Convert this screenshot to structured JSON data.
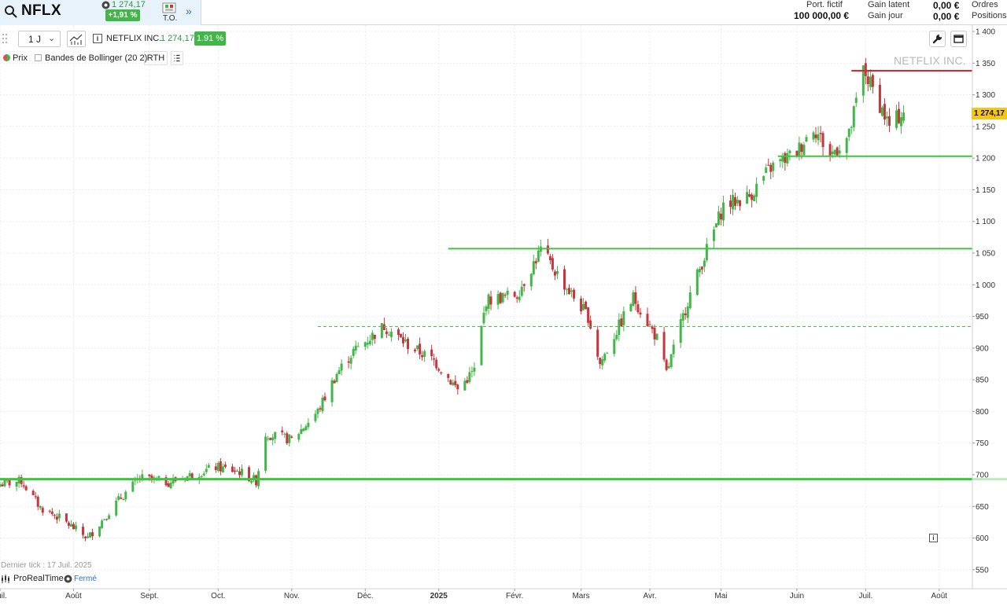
{
  "header": {
    "symbol": "NFLX",
    "mini_price": "1 274,17",
    "change_badge": "+1,91 %",
    "to_label": "T.O.",
    "expand_glyph": "»",
    "portfolio_label": "Port. fictif",
    "portfolio_value": "100 000,00 €",
    "latent_gain_label": "Gain latent",
    "latent_gain_value": "0,00 €",
    "day_gain_label": "Gain jour",
    "day_gain_value": "0,00 €",
    "orders_label": "Ordres",
    "positions_label": "Positions"
  },
  "toolbar": {
    "period": "1 J",
    "instrument_name": "NETFLIX INC.",
    "instrument_price": "1 274,17",
    "instrument_change": "1.91 %",
    "legend_price": "Prix",
    "legend_bollinger": "Bandes de Bollinger (20 2)",
    "rth": "RTH",
    "watermark": "NETFLIX INC."
  },
  "footer": {
    "last_tick": "Dernier tick : 17 Juil. 2025",
    "platform": "ProRealTime",
    "market_status": "Fermé"
  },
  "colors": {
    "up": "#43b649",
    "down": "#c9353d",
    "support_line": "#3cc63c",
    "resistance_line": "#e0242c",
    "last_price_tag": "#f5c518",
    "accent": "#2b70c9"
  },
  "icons": {
    "search": "search-icon",
    "trade_orders": "trade-orders-icon",
    "chart_type": "candlestick-chart-icon",
    "wrench": "wrench-icon",
    "window": "window-icon",
    "info": "info-icon",
    "list": "list-icon"
  },
  "chart_data": {
    "type": "candlestick",
    "instrument": "NETFLIX INC.",
    "last_price": 1274.17,
    "last_price_label": "1 274,17",
    "y_range": [
      520,
      1410
    ],
    "y_ticks": [
      1400,
      1350,
      1300,
      1250,
      1200,
      1150,
      1100,
      1050,
      1000,
      950,
      900,
      850,
      800,
      750,
      700,
      650,
      600,
      550
    ],
    "y_tick_labels": [
      "1 400",
      "1 350",
      "1 300",
      "1 250",
      "1 200",
      "1 150",
      "1 100",
      "1 050",
      "1 000",
      "950",
      "900",
      "850",
      "800",
      "750",
      "700",
      "650",
      "600",
      "550"
    ],
    "x_range": [
      "2024-07-01",
      "2025-08-15"
    ],
    "x_ticks": [
      {
        "label": "Juil.",
        "date": "2024-07-01",
        "bold": false
      },
      {
        "label": "Août",
        "date": "2024-08-01",
        "bold": false
      },
      {
        "label": "Sept.",
        "date": "2024-09-02",
        "bold": false
      },
      {
        "label": "Oct.",
        "date": "2024-10-01",
        "bold": false
      },
      {
        "label": "Nov.",
        "date": "2024-11-01",
        "bold": false
      },
      {
        "label": "Déc.",
        "date": "2024-12-02",
        "bold": false
      },
      {
        "label": "2025",
        "date": "2025-01-02",
        "bold": true
      },
      {
        "label": "Févr.",
        "date": "2025-02-03",
        "bold": false
      },
      {
        "label": "Mars",
        "date": "2025-03-03",
        "bold": false
      },
      {
        "label": "Avr.",
        "date": "2025-04-01",
        "bold": false
      },
      {
        "label": "Mai",
        "date": "2025-05-01",
        "bold": false
      },
      {
        "label": "Juin",
        "date": "2025-06-02",
        "bold": false
      },
      {
        "label": "Juil.",
        "date": "2025-07-01",
        "bold": false
      },
      {
        "label": "Août",
        "date": "2025-08-01",
        "bold": false
      }
    ],
    "price_path": [
      {
        "date": "2024-07-01",
        "close": 685
      },
      {
        "date": "2024-07-10",
        "close": 690
      },
      {
        "date": "2024-07-18",
        "close": 648
      },
      {
        "date": "2024-07-26",
        "close": 632
      },
      {
        "date": "2024-08-07",
        "close": 600
      },
      {
        "date": "2024-08-20",
        "close": 660
      },
      {
        "date": "2024-08-29",
        "close": 695
      },
      {
        "date": "2024-09-10",
        "close": 688
      },
      {
        "date": "2024-09-20",
        "close": 700
      },
      {
        "date": "2024-09-30",
        "close": 712
      },
      {
        "date": "2024-10-10",
        "close": 705
      },
      {
        "date": "2024-10-17",
        "close": 690
      },
      {
        "date": "2024-10-21",
        "close": 765
      },
      {
        "date": "2024-11-01",
        "close": 755
      },
      {
        "date": "2024-11-12",
        "close": 800
      },
      {
        "date": "2024-11-20",
        "close": 860
      },
      {
        "date": "2024-11-27",
        "close": 895
      },
      {
        "date": "2024-12-10",
        "close": 935
      },
      {
        "date": "2024-12-20",
        "close": 905
      },
      {
        "date": "2024-12-31",
        "close": 880
      },
      {
        "date": "2025-01-10",
        "close": 835
      },
      {
        "date": "2025-01-17",
        "close": 865
      },
      {
        "date": "2025-01-22",
        "close": 975
      },
      {
        "date": "2025-02-04",
        "close": 985
      },
      {
        "date": "2025-02-14",
        "close": 1055
      },
      {
        "date": "2025-02-25",
        "close": 995
      },
      {
        "date": "2025-03-06",
        "close": 950
      },
      {
        "date": "2025-03-11",
        "close": 875
      },
      {
        "date": "2025-03-25",
        "close": 980
      },
      {
        "date": "2025-04-04",
        "close": 915
      },
      {
        "date": "2025-04-08",
        "close": 860
      },
      {
        "date": "2025-04-17",
        "close": 975
      },
      {
        "date": "2025-04-24",
        "close": 1045
      },
      {
        "date": "2025-05-02",
        "close": 1125
      },
      {
        "date": "2025-05-13",
        "close": 1140
      },
      {
        "date": "2025-05-22",
        "close": 1185
      },
      {
        "date": "2025-06-02",
        "close": 1210
      },
      {
        "date": "2025-06-09",
        "close": 1250
      },
      {
        "date": "2025-06-16",
        "close": 1205
      },
      {
        "date": "2025-06-24",
        "close": 1235
      },
      {
        "date": "2025-06-30",
        "close": 1340
      },
      {
        "date": "2025-07-07",
        "close": 1285
      },
      {
        "date": "2025-07-11",
        "close": 1250
      },
      {
        "date": "2025-07-17",
        "close": 1274.17
      }
    ],
    "horizontal_lines": [
      {
        "price": 1338,
        "color": "red",
        "style": "solid",
        "from": "2025-06-25"
      },
      {
        "price": 1203,
        "color": "green",
        "style": "solid",
        "from": "2025-05-25"
      },
      {
        "price": 1057,
        "color": "green",
        "style": "solid",
        "from": "2025-01-06"
      },
      {
        "price": 934,
        "color": "green",
        "style": "dashed",
        "from": "2024-11-12"
      },
      {
        "price": 693,
        "color": "green",
        "style": "solid",
        "from": "2024-07-01"
      }
    ],
    "grid": true,
    "legend": "top-left"
  }
}
